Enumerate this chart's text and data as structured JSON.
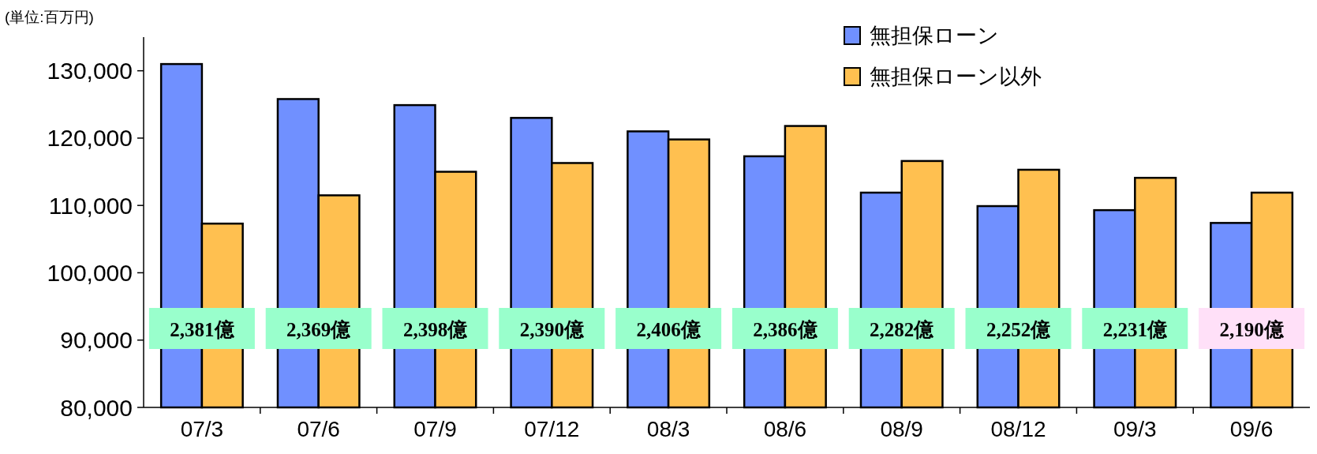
{
  "chart_data": {
    "type": "bar",
    "ylabel": "(単位:百万円)",
    "categories": [
      "07/3",
      "07/6",
      "07/9",
      "07/12",
      "08/3",
      "08/6",
      "08/9",
      "08/12",
      "09/3",
      "09/6"
    ],
    "series": [
      {
        "name": "無担保ローン",
        "color": "#7090ff",
        "values": [
          131000,
          125800,
          124900,
          123000,
          121000,
          117300,
          111900,
          109900,
          109300,
          107400
        ]
      },
      {
        "name": "無担保ローン以外",
        "color": "#ffc050",
        "values": [
          107300,
          111500,
          115000,
          116300,
          119800,
          121800,
          116600,
          115300,
          114100,
          111900
        ]
      }
    ],
    "annotations": [
      {
        "text": "2,381億",
        "x": "07/3"
      },
      {
        "text": "2,369億",
        "x": "07/6"
      },
      {
        "text": "2,398億",
        "x": "07/9"
      },
      {
        "text": "2,390億",
        "x": "07/12"
      },
      {
        "text": "2,406億",
        "x": "08/3"
      },
      {
        "text": "2,386億",
        "x": "08/6"
      },
      {
        "text": "2,282億",
        "x": "08/9"
      },
      {
        "text": "2,252億",
        "x": "08/12"
      },
      {
        "text": "2,231億",
        "x": "09/3"
      },
      {
        "text": "2,190億",
        "x": "09/6"
      }
    ],
    "ylim": [
      80000,
      135000
    ],
    "yticks": [
      {
        "value": 80000,
        "label": "80,000"
      },
      {
        "value": 90000,
        "label": "90,000"
      },
      {
        "value": 100000,
        "label": "100,000"
      },
      {
        "value": 110000,
        "label": "110,000"
      },
      {
        "value": 120000,
        "label": "120,000"
      },
      {
        "value": 130000,
        "label": "130,000"
      }
    ],
    "grid": false,
    "legend": "top right"
  }
}
